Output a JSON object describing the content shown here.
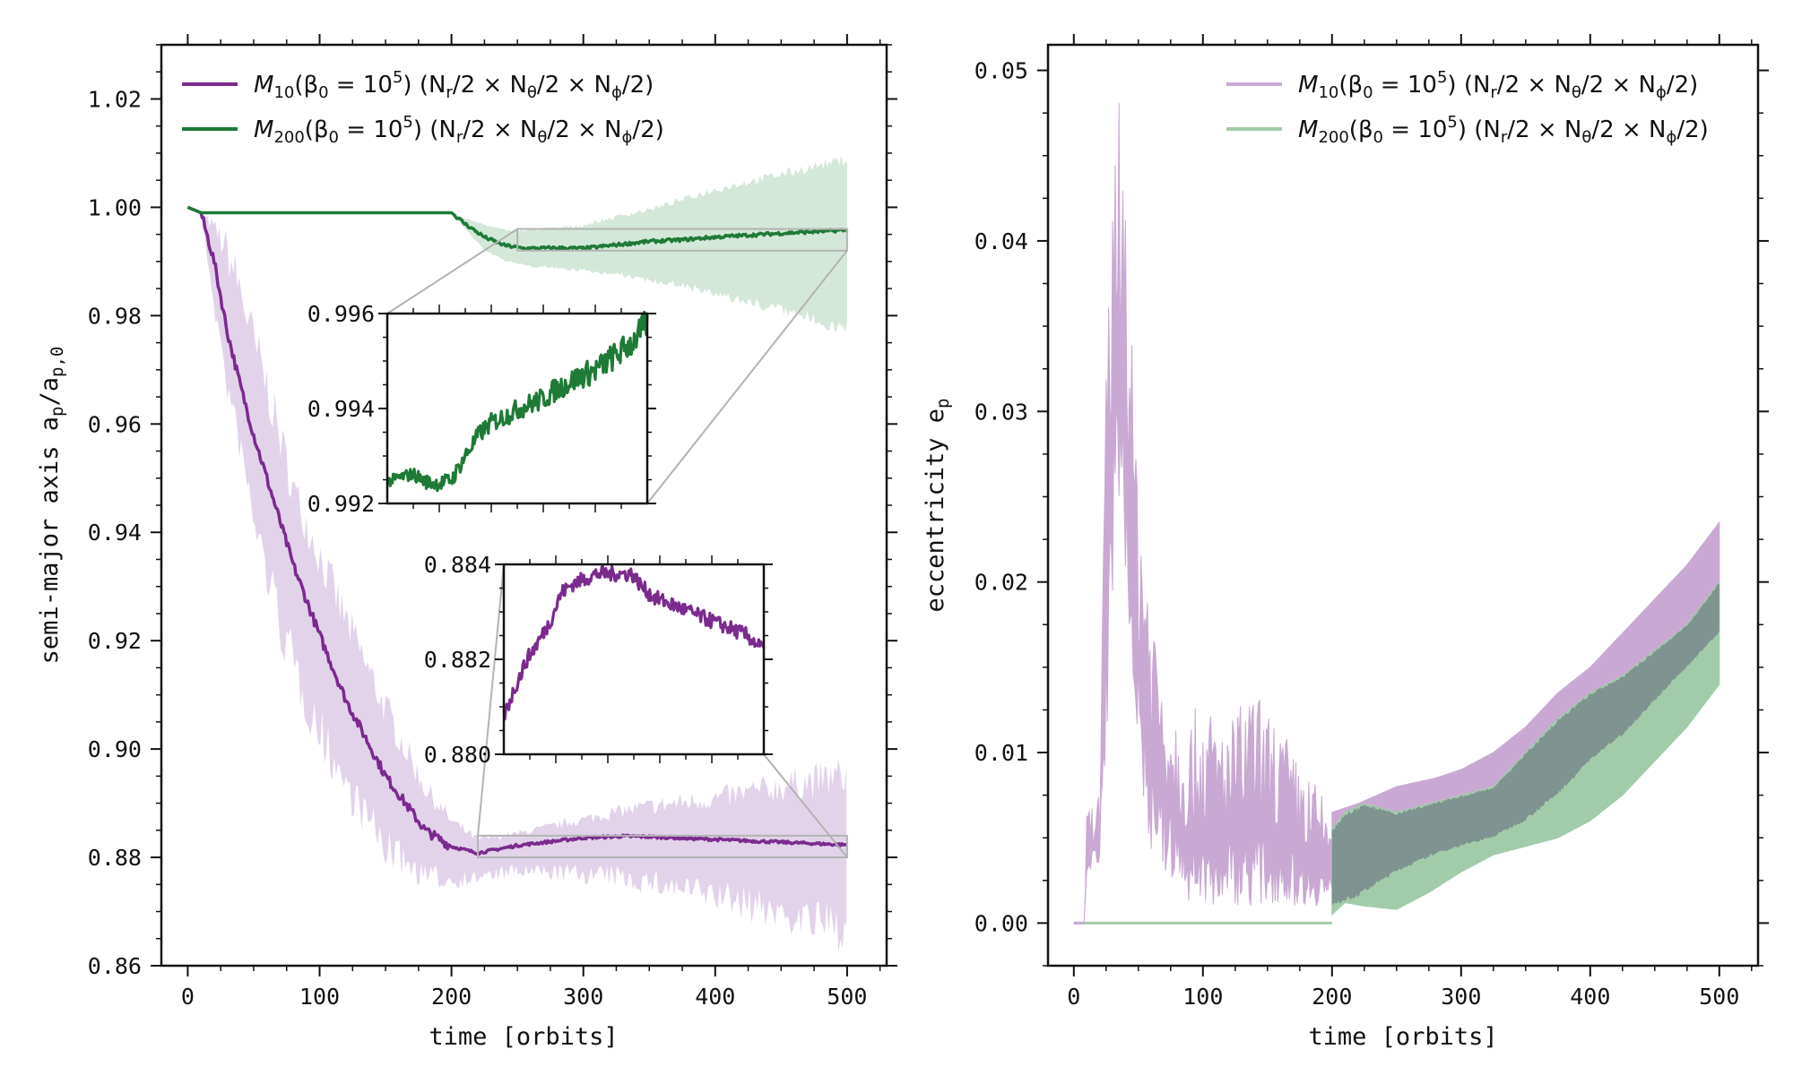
{
  "chart_data": [
    {
      "type": "line",
      "xlabel": "time [orbits]",
      "ylabel": "semi-major axis",
      "ylabel_symbol": "a_p/a_p,0",
      "xlim": [
        -20,
        530
      ],
      "ylim": [
        0.86,
        1.03
      ],
      "xticks": [
        0,
        100,
        200,
        300,
        400,
        500
      ],
      "xtick_labels": [
        "0",
        "100",
        "200",
        "300",
        "400",
        "500"
      ],
      "yticks": [
        0.86,
        0.88,
        0.9,
        0.92,
        0.94,
        0.96,
        0.98,
        1.0,
        1.02
      ],
      "ytick_labels": [
        "0.86",
        "0.88",
        "0.90",
        "0.92",
        "0.94",
        "0.96",
        "0.98",
        "1.00",
        "1.02"
      ],
      "legend_position": "top-left",
      "series": [
        {
          "name": "M10 (beta0 = 10^5) (Nr/2 x Ntheta/2 x Nphi/2)",
          "color": "#7b2a8e",
          "band_color": "#e2d3ea",
          "x": [
            0,
            10,
            20,
            30,
            40,
            50,
            60,
            70,
            80,
            100,
            120,
            150,
            180,
            200,
            220,
            250,
            300,
            330,
            350,
            400,
            450,
            500
          ],
          "value": [
            1.0,
            0.999,
            0.99,
            0.977,
            0.967,
            0.958,
            0.95,
            0.942,
            0.934,
            0.921,
            0.909,
            0.895,
            0.885,
            0.882,
            0.8808,
            0.8822,
            0.8836,
            0.8839,
            0.8838,
            0.8833,
            0.8828,
            0.8823
          ],
          "band_low": [
            1.0,
            0.999,
            0.98,
            0.964,
            0.952,
            0.938,
            0.928,
            0.918,
            0.91,
            0.898,
            0.889,
            0.878,
            0.874,
            0.874,
            0.875,
            0.876,
            0.875,
            0.874,
            0.873,
            0.87,
            0.866,
            0.862
          ],
          "band_high": [
            1.0,
            0.999,
            0.998,
            0.996,
            0.99,
            0.98,
            0.972,
            0.962,
            0.952,
            0.94,
            0.928,
            0.911,
            0.895,
            0.888,
            0.884,
            0.885,
            0.888,
            0.89,
            0.891,
            0.893,
            0.896,
            0.899
          ]
        },
        {
          "name": "M200 (beta0 = 10^5) (Nr/2 x Ntheta/2 x Nphi/2)",
          "color": "#1e7a36",
          "band_color": "#d4e8d9",
          "x": [
            0,
            10,
            100,
            200,
            210,
            225,
            240,
            255,
            280,
            300,
            330,
            350,
            375,
            400,
            450,
            500
          ],
          "value": [
            1.0,
            0.999,
            0.999,
            0.999,
            0.997,
            0.9945,
            0.993,
            0.9924,
            0.9925,
            0.9924,
            0.9932,
            0.9937,
            0.994,
            0.9945,
            0.9952,
            0.9958
          ],
          "band_low": [
            1.0,
            0.999,
            0.999,
            0.999,
            0.996,
            0.992,
            0.99,
            0.989,
            0.9885,
            0.988,
            0.987,
            0.986,
            0.985,
            0.983,
            0.98,
            0.976
          ],
          "band_high": [
            1.0,
            0.999,
            0.999,
            0.999,
            0.998,
            0.997,
            0.996,
            0.996,
            0.9965,
            0.997,
            0.999,
            1.0,
            1.002,
            1.004,
            1.007,
            1.01
          ]
        }
      ],
      "insets": [
        {
          "name": "inset-green",
          "series_index": 1,
          "xlim": [
            250,
            500
          ],
          "ylim": [
            0.992,
            0.996
          ],
          "yticks": [
            0.992,
            0.994,
            0.996
          ],
          "ytick_labels": [
            "0.992",
            "0.994",
            "0.996"
          ],
          "x": [
            250,
            262,
            275,
            288,
            300,
            312,
            325,
            338,
            350,
            362,
            375,
            388,
            400,
            412,
            425,
            438,
            450,
            462,
            475,
            488,
            500
          ],
          "value": [
            0.99245,
            0.99255,
            0.99262,
            0.99245,
            0.99242,
            0.9925,
            0.993,
            0.99345,
            0.9937,
            0.99382,
            0.99398,
            0.9941,
            0.9942,
            0.9944,
            0.99455,
            0.9947,
            0.9948,
            0.995,
            0.9952,
            0.99545,
            0.9958
          ]
        },
        {
          "name": "inset-purple",
          "series_index": 0,
          "xlim": [
            220,
            500
          ],
          "ylim": [
            0.88,
            0.884
          ],
          "yticks": [
            0.88,
            0.882,
            0.884
          ],
          "ytick_labels": [
            "0.880",
            "0.882",
            "0.884"
          ],
          "x": [
            220,
            232,
            245,
            258,
            270,
            282,
            295,
            308,
            320,
            332,
            345,
            358,
            370,
            382,
            395,
            408,
            420,
            432,
            445,
            458,
            470,
            482,
            500
          ],
          "value": [
            0.8808,
            0.8814,
            0.882,
            0.8824,
            0.8828,
            0.8834,
            0.8836,
            0.8837,
            0.8838,
            0.8838,
            0.8838,
            0.8838,
            0.8835,
            0.8833,
            0.8832,
            0.8831,
            0.883,
            0.8829,
            0.8828,
            0.8827,
            0.8826,
            0.8825,
            0.8822
          ]
        }
      ]
    },
    {
      "type": "line",
      "xlabel": "time [orbits]",
      "ylabel": "eccentricity",
      "ylabel_symbol": "e_p",
      "xlim": [
        -20,
        530
      ],
      "ylim": [
        -0.0025,
        0.0515
      ],
      "xticks": [
        0,
        100,
        200,
        300,
        400,
        500
      ],
      "xtick_labels": [
        "0",
        "100",
        "200",
        "300",
        "400",
        "500"
      ],
      "yticks": [
        0.0,
        0.01,
        0.02,
        0.03,
        0.04,
        0.05
      ],
      "ytick_labels": [
        "0.00",
        "0.01",
        "0.02",
        "0.03",
        "0.04",
        "0.05"
      ],
      "legend_position": "top-right",
      "series": [
        {
          "name": "M10 (beta0 = 10^5) (Nr/2 x Ntheta/2 x Nphi/2)",
          "color": "#c9a9d3",
          "x": [
            0,
            8,
            10,
            15,
            20,
            25,
            30,
            35,
            40,
            45,
            50,
            55,
            60,
            70,
            80,
            90,
            100,
            110,
            120,
            130,
            140,
            150,
            160,
            170,
            180,
            190,
            200,
            220,
            250,
            280,
            300,
            325,
            350,
            375,
            400,
            425,
            450,
            475,
            500
          ],
          "low": [
            0.0,
            0.0,
            0.002,
            0.003,
            0.003,
            0.01,
            0.018,
            0.025,
            0.02,
            0.014,
            0.01,
            0.006,
            0.004,
            0.003,
            0.002,
            0.001,
            0.001,
            0.0008,
            0.0012,
            0.001,
            0.001,
            0.001,
            0.0012,
            0.001,
            0.001,
            0.001,
            0.001,
            0.0015,
            0.003,
            0.004,
            0.0045,
            0.005,
            0.006,
            0.0075,
            0.0095,
            0.011,
            0.013,
            0.015,
            0.017
          ],
          "high": [
            0.0,
            0.0,
            0.007,
            0.007,
            0.008,
            0.032,
            0.048,
            0.0492,
            0.0488,
            0.034,
            0.027,
            0.024,
            0.02,
            0.015,
            0.013,
            0.012,
            0.0135,
            0.012,
            0.012,
            0.013,
            0.0138,
            0.0125,
            0.012,
            0.01,
            0.009,
            0.008,
            0.0065,
            0.007,
            0.008,
            0.0085,
            0.009,
            0.01,
            0.0115,
            0.0135,
            0.015,
            0.017,
            0.019,
            0.021,
            0.0235
          ]
        },
        {
          "name": "M200 (beta0 = 10^5) (Nr/2 x Ntheta/2 x Nphi/2)",
          "color": "#a1cba9",
          "x": [
            0,
            100,
            199,
            200,
            210,
            225,
            250,
            275,
            300,
            325,
            350,
            375,
            400,
            425,
            450,
            475,
            500
          ],
          "low": [
            0.0,
            0.0,
            0.0,
            0.0005,
            0.0012,
            0.001,
            0.0008,
            0.0018,
            0.003,
            0.004,
            0.0045,
            0.005,
            0.006,
            0.0075,
            0.0095,
            0.0115,
            0.014
          ],
          "high": [
            0.0,
            0.0,
            0.0,
            0.0055,
            0.0065,
            0.007,
            0.0065,
            0.007,
            0.0075,
            0.008,
            0.01,
            0.012,
            0.0135,
            0.0145,
            0.016,
            0.0175,
            0.02
          ]
        }
      ]
    }
  ],
  "legend_text": {
    "m10_prefix": "M",
    "m10_sub": "10",
    "m200_prefix": "M",
    "m200_sub": "200",
    "beta_open": "(β",
    "beta_sub": "0",
    "equals": " = 10",
    "power": "5",
    "res_open": ") (N",
    "r_sub": "r",
    "res_mid1": "/2 × N",
    "theta_sub": "θ",
    "res_mid2": "/2 × N",
    "phi_sub": "ϕ",
    "res_close": "/2)"
  },
  "colors": {
    "purple_line": "#7b2a8e",
    "purple_band": "#e2d3ea",
    "green_line": "#1e7a36",
    "green_band": "#d4e8d9",
    "purple_light": "#c9a9d3",
    "green_light": "#a1cba9",
    "overlap": "#7f9490",
    "zoom_box": "#b3b3b3"
  }
}
